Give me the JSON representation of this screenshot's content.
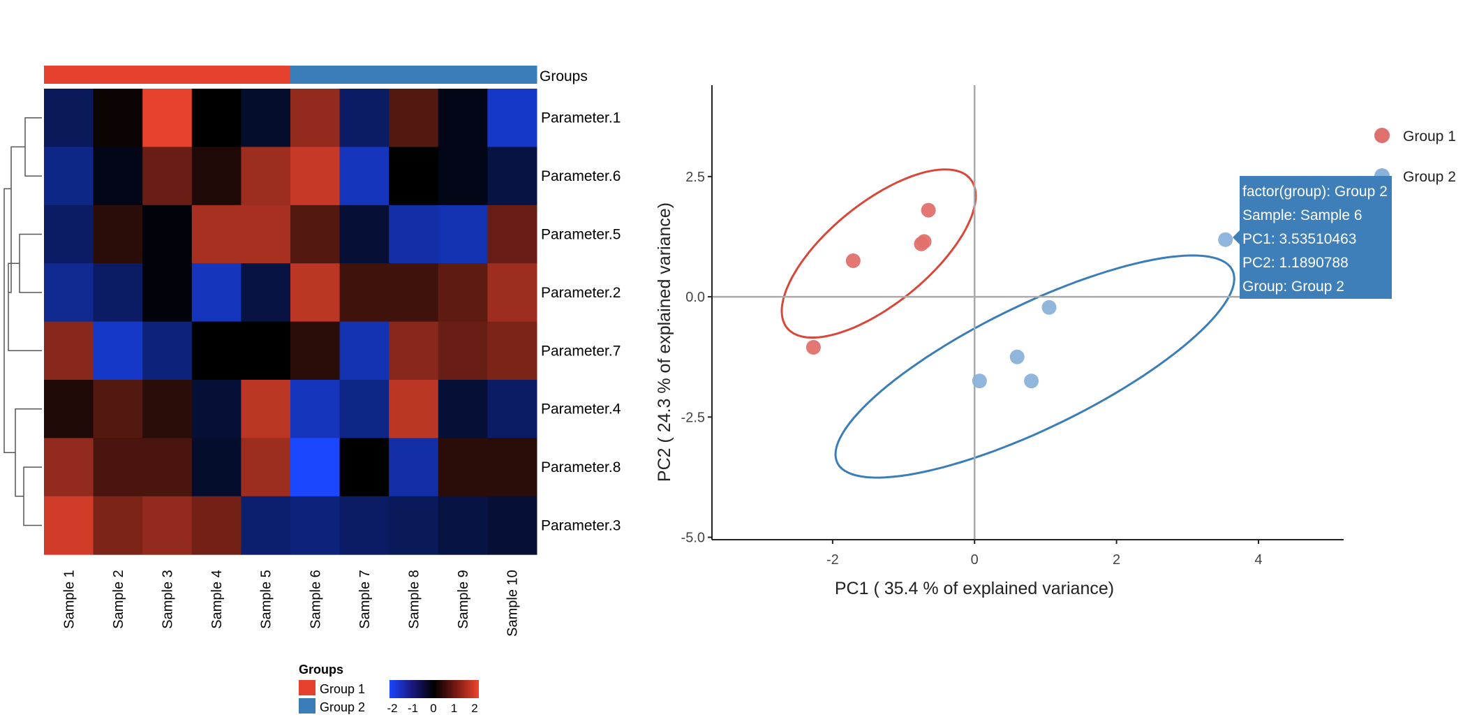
{
  "chart_data": [
    {
      "type": "heatmap",
      "title": "",
      "annotation": {
        "label": "Groups",
        "legend_title": "Groups",
        "groups": [
          {
            "name": "Group 1",
            "color": "#e6402f"
          },
          {
            "name": "Group 2",
            "color": "#3a7db8"
          }
        ],
        "sample_groups": [
          "Group 1",
          "Group 1",
          "Group 1",
          "Group 1",
          "Group 1",
          "Group 2",
          "Group 2",
          "Group 2",
          "Group 2",
          "Group 2"
        ]
      },
      "columns": [
        "Sample 1",
        "Sample 2",
        "Sample 3",
        "Sample 4",
        "Sample 5",
        "Sample 6",
        "Sample 7",
        "Sample 8",
        "Sample 9",
        "Sample 10"
      ],
      "rows": [
        "Parameter.1",
        "Parameter.6",
        "Parameter.5",
        "Parameter.2",
        "Parameter.7",
        "Parameter.4",
        "Parameter.8",
        "Parameter.3"
      ],
      "values": [
        [
          -0.8,
          0.1,
          2.2,
          0.0,
          -0.4,
          1.4,
          -0.9,
          0.8,
          -0.2,
          -1.8
        ],
        [
          -1.2,
          -0.2,
          1.0,
          0.3,
          1.5,
          1.9,
          -1.7,
          0.0,
          -0.2,
          -0.6
        ],
        [
          -0.9,
          0.4,
          -0.1,
          1.6,
          1.6,
          0.8,
          -0.5,
          -1.5,
          -1.6,
          1.0
        ],
        [
          -1.3,
          -0.9,
          -0.1,
          -1.7,
          -0.6,
          1.8,
          0.6,
          0.6,
          0.9,
          1.5
        ],
        [
          1.3,
          -1.8,
          -1.1,
          0.0,
          0.0,
          0.4,
          -1.6,
          1.3,
          1.0,
          1.2
        ],
        [
          0.3,
          0.8,
          0.4,
          -0.5,
          1.8,
          -1.7,
          -1.2,
          1.8,
          -0.5,
          -0.9
        ],
        [
          1.4,
          0.7,
          0.7,
          -0.4,
          1.5,
          -2.3,
          0.0,
          -1.5,
          0.4,
          0.4
        ],
        [
          2.0,
          1.2,
          1.4,
          1.1,
          -1.0,
          -1.1,
          -0.9,
          -0.8,
          -0.6,
          -0.5
        ]
      ],
      "color_scale": {
        "ticks": [
          "-2",
          "-1",
          "0",
          "1",
          "2"
        ],
        "low": "#1b48ff",
        "mid": "#000000",
        "high": "#f0452f",
        "range": [
          -2.3,
          2.3
        ]
      }
    },
    {
      "type": "scatter",
      "xlabel": "PC1 ( 35.4 % of explained variance)",
      "ylabel": "PC2 ( 24.3 % of explained variance)",
      "xlim": [
        -3.7,
        5.2
      ],
      "ylim": [
        -5.05,
        4.4
      ],
      "xticks": [
        -2,
        0,
        2,
        4
      ],
      "xtick_labels": [
        "-2",
        "0",
        "2",
        "4"
      ],
      "yticks": [
        2.5,
        0.0,
        -2.5,
        -5.0
      ],
      "ytick_labels": [
        "2.5",
        "0.0",
        "-2.5",
        "-5.0"
      ],
      "legend": [
        {
          "name": "Group 1",
          "color": "#e0706d"
        },
        {
          "name": "Group 2",
          "color": "#8ab2d9"
        }
      ],
      "series": [
        {
          "name": "Group 1",
          "x": [
            -2.27,
            -1.71,
            -0.65,
            -0.71,
            -0.75
          ],
          "y": [
            -1.05,
            0.75,
            1.8,
            1.15,
            1.1
          ]
        },
        {
          "name": "Group 2",
          "x": [
            3.535,
            1.05,
            0.6,
            0.8,
            0.07
          ],
          "y": [
            1.189,
            -0.22,
            -1.25,
            -1.75,
            -1.75
          ]
        }
      ],
      "ellipses": [
        {
          "group": "Group 1",
          "cx": -1.35,
          "cy": 0.9,
          "rx": 2.05,
          "ry": 0.85,
          "angle_deg": 55,
          "color": "#d9473b"
        },
        {
          "group": "Group 2",
          "cx": 0.85,
          "cy": -1.45,
          "rx": 3.45,
          "ry": 1.15,
          "angle_deg": 38,
          "color": "#3a7db8"
        }
      ],
      "tooltip": {
        "group_line": "factor(group): Group 2",
        "sample_line": "Sample: Sample 6",
        "pc1_line": "PC1:  3.53510463",
        "pc2_line": "PC2:  1.1890788",
        "group2_line": "Group: Group 2"
      }
    }
  ]
}
